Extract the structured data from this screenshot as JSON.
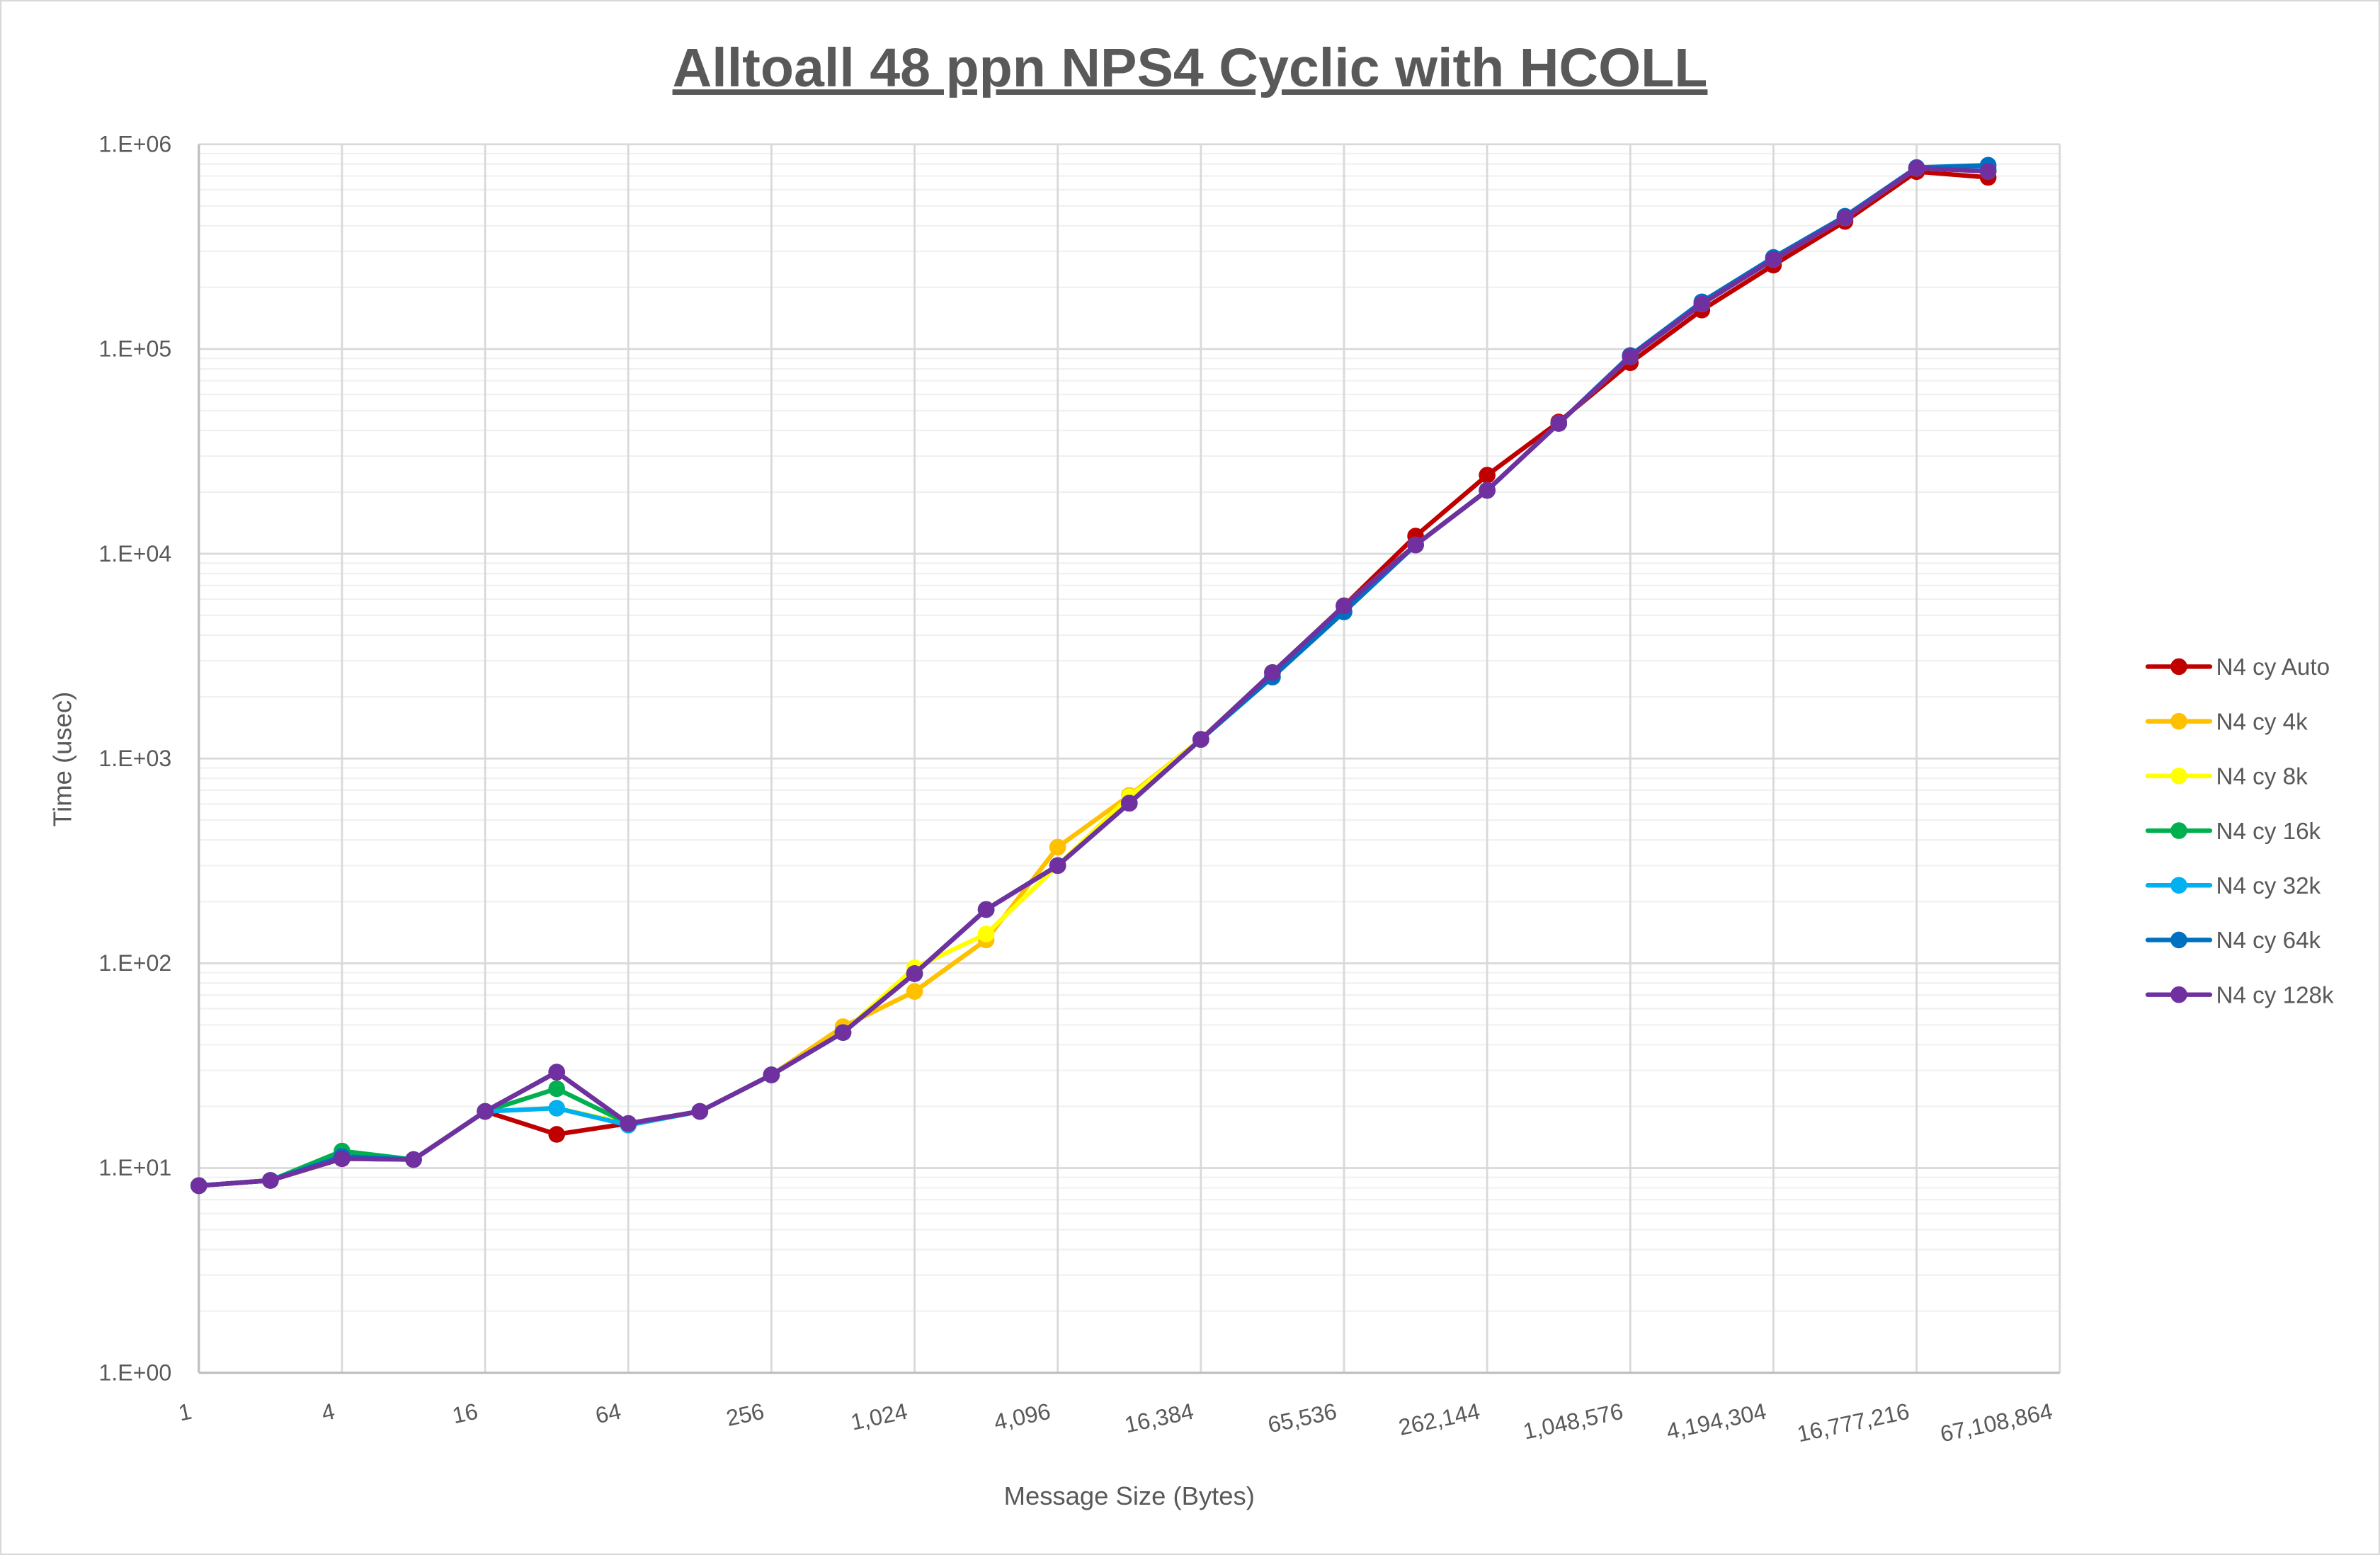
{
  "chart_data": {
    "type": "line",
    "title": "Alltoall 48 ppn NPS4 Cyclic with HCOLL",
    "xlabel": "Message Size (Bytes)",
    "ylabel": "Time (usec)",
    "x_scale": "log2",
    "y_scale": "log10",
    "xlim": [
      1,
      67108864
    ],
    "ylim": [
      1,
      1000000
    ],
    "grid": {
      "major": true,
      "minor_y": true
    },
    "legend_position": "right",
    "x_tick_labels": [
      "1",
      "4",
      "16",
      "64",
      "256",
      "1,024",
      "4,096",
      "16,384",
      "65,536",
      "262,144",
      "1,048,576",
      "4,194,304",
      "16,777,216",
      "67,108,864"
    ],
    "y_tick_labels": [
      "1.E+00",
      "1.E+01",
      "1.E+02",
      "1.E+03",
      "1.E+04",
      "1.E+05",
      "1.E+06"
    ],
    "x": [
      1,
      2,
      4,
      8,
      16,
      32,
      64,
      128,
      256,
      512,
      1024,
      2048,
      4096,
      8192,
      16384,
      32768,
      65536,
      131072,
      262144,
      524288,
      1048576,
      2097152,
      4194304,
      8388608,
      16777216,
      33554432
    ],
    "series": [
      {
        "name": "N4 cy Auto",
        "color": "#C00000",
        "values": [
          8.2,
          8.7,
          11.1,
          11,
          18.9,
          14.6,
          16.5,
          18.9,
          28.5,
          45.9,
          89,
          183,
          300,
          605,
          1240,
          2630,
          5570,
          12200,
          24200,
          44000,
          85700,
          155000,
          257000,
          420000,
          735000,
          689000
        ]
      },
      {
        "name": "N4 cy 4k",
        "color": "#FFC000",
        "values": [
          8.2,
          8.7,
          11.1,
          11,
          18.9,
          29.4,
          16.5,
          18.9,
          28.5,
          49,
          72.8,
          130,
          369,
          660,
          1240,
          2630,
          5570,
          11040,
          20400,
          43300,
          91800,
          166000,
          274000,
          437000,
          764000,
          738000
        ]
      },
      {
        "name": "N4 cy 8k",
        "color": "#FFFF00",
        "values": [
          8.2,
          8.7,
          11.1,
          11,
          18.9,
          19.6,
          16.5,
          18.9,
          28.5,
          46,
          95,
          139,
          300,
          650,
          1240,
          2630,
          5570,
          11040,
          20400,
          43300,
          91800,
          166000,
          274000,
          437000,
          764000,
          738000
        ]
      },
      {
        "name": "N4 cy 16k",
        "color": "#00B050",
        "values": [
          8.2,
          8.7,
          12.1,
          11,
          18.9,
          24.4,
          16.5,
          18.9,
          28.5,
          45.9,
          89,
          183,
          300,
          605,
          1240,
          2630,
          5570,
          11040,
          20400,
          43300,
          91800,
          166000,
          274000,
          437000,
          764000,
          738000
        ]
      },
      {
        "name": "N4 cy 32k",
        "color": "#00B0F0",
        "values": [
          8.2,
          8.7,
          11.4,
          11,
          18.9,
          19.6,
          16.2,
          18.9,
          28.5,
          45.9,
          89,
          183,
          300,
          605,
          1240,
          2500,
          5200,
          11040,
          20400,
          43300,
          92500,
          168000,
          278000,
          442000,
          764000,
          760000
        ]
      },
      {
        "name": "N4 cy 64k",
        "color": "#0070C0",
        "values": [
          8.2,
          8.7,
          11.4,
          11,
          18.9,
          29.4,
          16.5,
          18.9,
          28.5,
          45.9,
          89,
          183,
          300,
          605,
          1240,
          2500,
          5200,
          11040,
          20400,
          43300,
          93000,
          170000,
          280000,
          445000,
          770000,
          790000
        ]
      },
      {
        "name": "N4 cy 128k",
        "color": "#7030A0",
        "values": [
          8.2,
          8.7,
          11.1,
          11,
          18.9,
          29.4,
          16.5,
          18.9,
          28.5,
          45.9,
          89,
          183,
          300,
          605,
          1240,
          2630,
          5570,
          11040,
          20400,
          43300,
          91800,
          166000,
          274000,
          437000,
          764000,
          738000
        ]
      }
    ]
  }
}
